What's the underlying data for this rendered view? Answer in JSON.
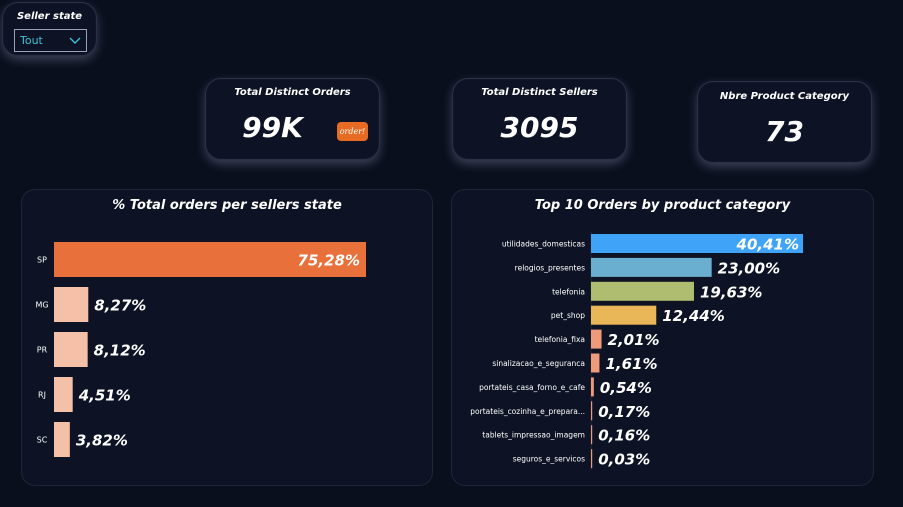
{
  "slicer": {
    "title": "Seller state",
    "value": "Tout"
  },
  "kpis": [
    {
      "title": "Total Distinct Orders",
      "value": "99K",
      "badge": "order!"
    },
    {
      "title": "Total Distinct Sellers",
      "value": "3095"
    },
    {
      "title": "Nbre Product Category",
      "value": "73"
    }
  ],
  "colors": {
    "background": "#0a0f1e",
    "sp_bar": "#e8703a",
    "state_bar": "#f4c1a8"
  },
  "chart_data": [
    {
      "type": "bar",
      "orientation": "horizontal",
      "title": "% Total orders per sellers state",
      "categories": [
        "SP",
        "MG",
        "PR",
        "RJ",
        "SC"
      ],
      "values": [
        75.28,
        8.27,
        8.12,
        4.51,
        3.82
      ],
      "labels": [
        "75,28%",
        "8,27%",
        "8,12%",
        "4,51%",
        "3,82%"
      ],
      "colors": [
        "#e8703a",
        "#f4c1a8",
        "#f4c1a8",
        "#f4c1a8",
        "#f4c1a8"
      ],
      "xlim": [
        0,
        75.28
      ]
    },
    {
      "type": "bar",
      "orientation": "horizontal",
      "title": "Top 10 Orders by product category",
      "categories": [
        "utilidades_domesticas",
        "relogios_presentes",
        "telefonia",
        "pet_shop",
        "telefonia_fixa",
        "sinalizacao_e_seguranca",
        "portateis_casa_forno_e_cafe",
        "portateis_cozinha_e_prepara...",
        "tablets_impressao_imagem",
        "seguros_e_servicos"
      ],
      "values": [
        40.41,
        23.0,
        19.63,
        12.44,
        2.01,
        1.61,
        0.54,
        0.17,
        0.16,
        0.03
      ],
      "labels": [
        "40,41%",
        "23,00%",
        "19,63%",
        "12,44%",
        "2,01%",
        "1,61%",
        "0,54%",
        "0,17%",
        "0,16%",
        "0,03%"
      ],
      "colors": [
        "#3fa4f7",
        "#6aaed0",
        "#aebd6f",
        "#e9b658",
        "#ef9a78",
        "#ef9a78",
        "#ef9a78",
        "#ef9a78",
        "#ef9a78",
        "#ef9a78"
      ],
      "xlim": [
        0,
        40.41
      ]
    }
  ]
}
